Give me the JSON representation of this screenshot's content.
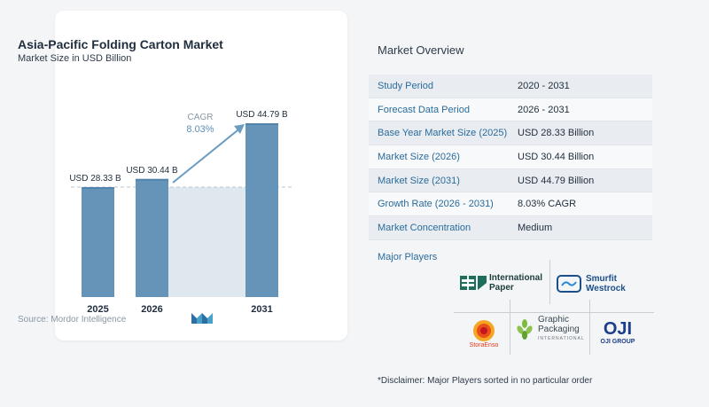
{
  "chart_data": {
    "type": "bar",
    "title": "Asia-Pacific Folding Carton Market",
    "subtitle": "Market Size in USD Billion",
    "categories": [
      "2025",
      "2026",
      "2031"
    ],
    "values": [
      28.33,
      30.44,
      44.79
    ],
    "value_labels": [
      "USD 28.33 B",
      "USD 30.44 B",
      "USD 44.79 B"
    ],
    "cagr_label": "CAGR",
    "cagr_value": "8.03%",
    "ylim": [
      0,
      48
    ],
    "grid": false,
    "colors": {
      "bar": "#6594b8",
      "bar_top": "#5184ad",
      "forecast_band": "#dfe8ef",
      "arrow": "#6b9cc2",
      "dashed_line": "#b9c3cc"
    }
  },
  "source": "Source: Mordor Intelligence",
  "overview": {
    "title": "Market Overview",
    "rows": [
      {
        "label": "Study Period",
        "value": "2020 - 2031"
      },
      {
        "label": "Forecast Data Period",
        "value": "2026 - 2031"
      },
      {
        "label": "Base Year Market Size (2025)",
        "value": "USD 28.33 Billion"
      },
      {
        "label": "Market Size (2026)",
        "value": "USD 30.44 Billion"
      },
      {
        "label": "Market Size (2031)",
        "value": "USD 44.79 Billion"
      },
      {
        "label": "Growth Rate (2026 - 2031)",
        "value": "8.03% CAGR"
      },
      {
        "label": "Market Concentration",
        "value": "Medium"
      }
    ]
  },
  "players": {
    "title": "Major Players",
    "international_paper": {
      "line1": "International",
      "line2": "Paper"
    },
    "smurfit_westrock": {
      "line1": "Smurfit",
      "line2": "Westrock"
    },
    "graphic_packaging": {
      "line1": "Graphic",
      "line2": "Packaging",
      "line3": "INTERNATIONAL"
    },
    "stora_enso": {
      "name": "StoraEnso"
    },
    "oji": {
      "mark": "OJI",
      "name": "OJI GROUP"
    }
  },
  "disclaimer": "*Disclaimer: Major Players sorted in no particular order"
}
